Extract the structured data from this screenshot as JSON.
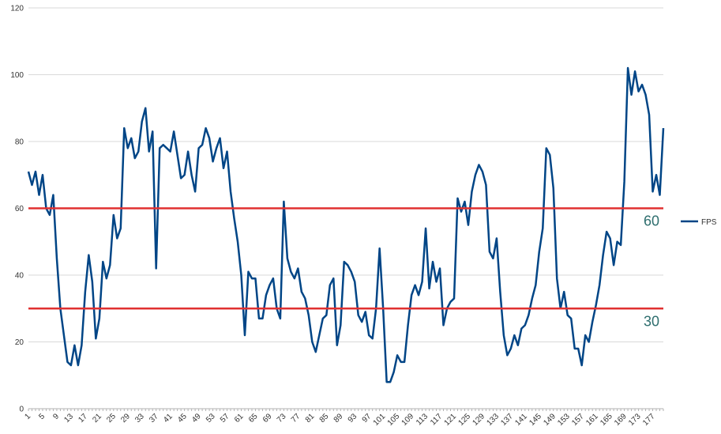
{
  "chart_data": {
    "type": "line",
    "categories": [
      1,
      null,
      null,
      null,
      5,
      null,
      null,
      null,
      9,
      null,
      null,
      null,
      13,
      null,
      null,
      null,
      17,
      null,
      null,
      null,
      21,
      null,
      null,
      null,
      25,
      null,
      null,
      null,
      29,
      null,
      null,
      null,
      33,
      null,
      null,
      null,
      37,
      null,
      null,
      null,
      41,
      null,
      null,
      null,
      45,
      null,
      null,
      null,
      49,
      null,
      null,
      null,
      53,
      null,
      null,
      null,
      57,
      null,
      null,
      null,
      61,
      null,
      null,
      null,
      65,
      null,
      null,
      null,
      69,
      null,
      null,
      null,
      73,
      null,
      null,
      null,
      77,
      null,
      null,
      null,
      81,
      null,
      null,
      null,
      85,
      null,
      null,
      null,
      89,
      null,
      null,
      null,
      93,
      null,
      null,
      null,
      97,
      null,
      null,
      null,
      101,
      null,
      null,
      null,
      105,
      null,
      null,
      null,
      109,
      null,
      null,
      null,
      113,
      null,
      null,
      null,
      117,
      null,
      null,
      null,
      121,
      null,
      null,
      null,
      125,
      null,
      null,
      null,
      129,
      null,
      null,
      null,
      133,
      null,
      null,
      null,
      137,
      null,
      null,
      null,
      141,
      null,
      null,
      null,
      145,
      null,
      null,
      null,
      149,
      null,
      null,
      null,
      153,
      null,
      null,
      null,
      157,
      null,
      null,
      null,
      161,
      null,
      null,
      null,
      165,
      null,
      null,
      null,
      169,
      null,
      null,
      null,
      173,
      null,
      null,
      null,
      177,
      null,
      null,
      null
    ],
    "series": [
      {
        "name": "FPS",
        "color": "#004586",
        "values": [
          71,
          67,
          71,
          64,
          70,
          60,
          58,
          64,
          45,
          30,
          22,
          14,
          13,
          19,
          13,
          19,
          35,
          46,
          38,
          21,
          27,
          44,
          39,
          43,
          58,
          51,
          54,
          84,
          78,
          81,
          75,
          77,
          86,
          90,
          77,
          83,
          42,
          78,
          79,
          78,
          77,
          83,
          76,
          69,
          70,
          77,
          70,
          65,
          78,
          79,
          84,
          81,
          74,
          78,
          81,
          72,
          77,
          65,
          57,
          50,
          40,
          22,
          41,
          39,
          39,
          27,
          27,
          34,
          37,
          39,
          30,
          27,
          62,
          45,
          41,
          39,
          42,
          35,
          33,
          28,
          20,
          17,
          22,
          27,
          28,
          37,
          39,
          19,
          25,
          44,
          43,
          41,
          38,
          28,
          26,
          29,
          22,
          21,
          30,
          48,
          30,
          8,
          8,
          11,
          16,
          14,
          14,
          25,
          34,
          37,
          34,
          38,
          54,
          36,
          44,
          38,
          42,
          25,
          30,
          32,
          33,
          63,
          59,
          62,
          55,
          65,
          70,
          73,
          71,
          67,
          47,
          45,
          51,
          35,
          22,
          16,
          18,
          22,
          19,
          24,
          25,
          28,
          33,
          37,
          47,
          54,
          78,
          76,
          66,
          39,
          30,
          35,
          28,
          27,
          18,
          18,
          13,
          22,
          20,
          26,
          31,
          37,
          46,
          53,
          51,
          43,
          50,
          49,
          68,
          102,
          94,
          101,
          95,
          97,
          94,
          88,
          65,
          70,
          64,
          84
        ]
      }
    ],
    "ylim": [
      0,
      120
    ],
    "yticks": [
      0,
      20,
      40,
      60,
      80,
      100,
      120
    ],
    "grid": true,
    "reference_lines": [
      {
        "value": 60,
        "label": "60",
        "color": "#e03131"
      },
      {
        "value": 30,
        "label": "30",
        "color": "#e03131"
      }
    ],
    "legend": "right"
  }
}
